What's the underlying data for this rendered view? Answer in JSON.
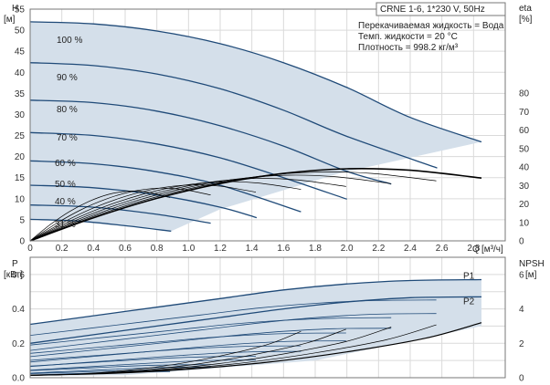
{
  "chart_data": [
    {
      "type": "line",
      "title": "CRNE 1-6, 1*230 V, 50Hz",
      "ylabel": "H",
      "yunit": "[м]",
      "y2label": "eta",
      "y2unit": "[%]",
      "xlabel": "Q",
      "xunit": "[м³/ч]",
      "xlim": [
        0,
        3.0
      ],
      "ylim": [
        0,
        55
      ],
      "y2lim": [
        0,
        80
      ],
      "xticks": [
        "0",
        "0.2",
        "0.4",
        "0.6",
        "0.8",
        "1.0",
        "1.2",
        "1.4",
        "1.6",
        "1.8",
        "2.0",
        "2.2",
        "2.4",
        "2.6",
        "2.8"
      ],
      "yticks": [
        "0",
        "5",
        "10",
        "15",
        "20",
        "25",
        "30",
        "35",
        "40",
        "45",
        "50",
        "55"
      ],
      "y2ticks": [
        "0",
        "10",
        "20",
        "30",
        "40",
        "50",
        "60",
        "70",
        "80"
      ],
      "grid": true,
      "info_lines": [
        "Перекачиваемая жидкость = Вода",
        "Темп. жидкости = 20 °C",
        "Плотность = 998.2 кг/м³"
      ],
      "speed_labels": [
        "100 %",
        "90 %",
        "80 %",
        "70 %",
        "60 %",
        "50 %",
        "40 %",
        "31 %"
      ],
      "series": [
        {
          "name": "100 %",
          "x": [
            0,
            0.4,
            0.8,
            1.2,
            1.6,
            2.0,
            2.4,
            2.85
          ],
          "values": [
            52,
            51.5,
            49.8,
            46.8,
            42.3,
            36.4,
            29.3,
            23.5
          ]
        },
        {
          "name": "90 %",
          "x": [
            0,
            0.4,
            0.8,
            1.2,
            1.6,
            2.0,
            2.57
          ],
          "values": [
            42.3,
            41.6,
            39.6,
            36.1,
            31.0,
            24.8,
            17.3
          ]
        },
        {
          "name": "80 %",
          "x": [
            0,
            0.4,
            0.8,
            1.2,
            1.6,
            2.0,
            2.28
          ],
          "values": [
            33.4,
            32.8,
            30.8,
            27.3,
            22.5,
            16.5,
            13.5
          ]
        },
        {
          "name": "70 %",
          "x": [
            0,
            0.4,
            0.8,
            1.2,
            1.6,
            2.0
          ],
          "values": [
            25.7,
            25.0,
            23.0,
            19.7,
            15.0,
            9.9
          ]
        },
        {
          "name": "60 %",
          "x": [
            0,
            0.4,
            0.8,
            1.2,
            1.71
          ],
          "values": [
            19.0,
            18.3,
            16.4,
            13.2,
            6.9
          ]
        },
        {
          "name": "50 %",
          "x": [
            0,
            0.4,
            0.8,
            1.2,
            1.43
          ],
          "values": [
            13.2,
            12.6,
            10.9,
            8.0,
            5.5
          ]
        },
        {
          "name": "40 %",
          "x": [
            0,
            0.4,
            0.8,
            1.14
          ],
          "values": [
            8.5,
            8.0,
            6.3,
            4.2
          ]
        },
        {
          "name": "31 %",
          "x": [
            0,
            0.3,
            0.6,
            0.89
          ],
          "values": [
            5.1,
            4.7,
            3.6,
            2.3
          ]
        }
      ],
      "eta_series": [
        {
          "name": "eta",
          "x": [
            0,
            0.4,
            0.8,
            1.2,
            1.6,
            2.0,
            2.4,
            2.85
          ],
          "values": [
            0,
            12.5,
            23.0,
            31.0,
            36.5,
            39.0,
            38.2,
            34.0
          ]
        }
      ]
    },
    {
      "type": "line",
      "ylabel": "P",
      "yunit": "[кВт]",
      "y2label": "NPSH",
      "y2unit": "[м]",
      "xlim": [
        0,
        3.0
      ],
      "ylim": [
        0,
        0.7
      ],
      "y2lim": [
        0,
        7
      ],
      "yticks": [
        "0.0",
        "0.2",
        "0.4",
        "0.6"
      ],
      "y2ticks": [
        "0",
        "2",
        "4",
        "6"
      ],
      "grid": true,
      "series": [
        {
          "name": "P1",
          "x": [
            0,
            0.4,
            0.8,
            1.2,
            1.6,
            2.0,
            2.4,
            2.85
          ],
          "values": [
            0.31,
            0.36,
            0.41,
            0.46,
            0.51,
            0.545,
            0.565,
            0.57
          ]
        },
        {
          "name": "P2",
          "x": [
            0,
            0.4,
            0.8,
            1.2,
            1.6,
            2.0,
            2.4,
            2.85
          ],
          "values": [
            0.2,
            0.25,
            0.3,
            0.35,
            0.4,
            0.44,
            0.465,
            0.47
          ]
        }
      ],
      "npsh_series": [
        {
          "name": "NPSH",
          "x": [
            0,
            0.5,
            1.0,
            1.5,
            2.0,
            2.5,
            2.85
          ],
          "values": [
            0.15,
            0.25,
            0.5,
            0.9,
            1.5,
            2.3,
            3.2
          ]
        }
      ]
    }
  ]
}
